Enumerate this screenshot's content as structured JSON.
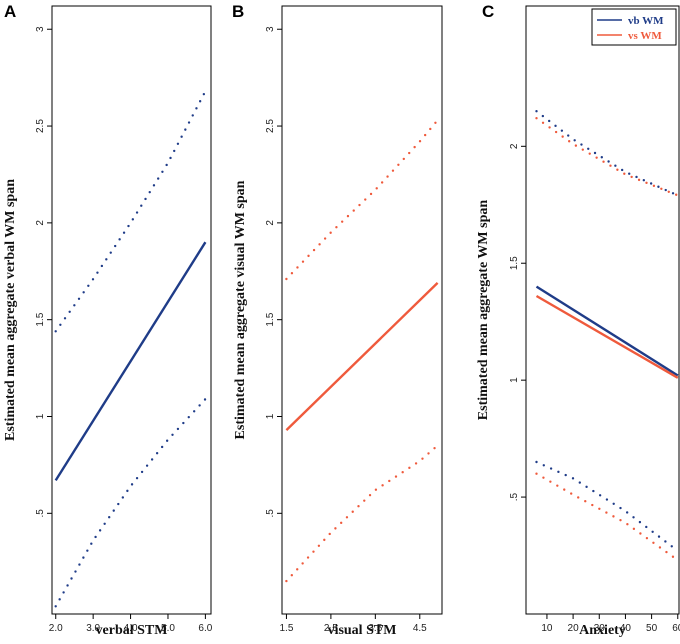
{
  "colors": {
    "verbal": "#1f3c88",
    "visual": "#ef5a3c",
    "axis": "#000000"
  },
  "chart_data": [
    {
      "panel": "A",
      "type": "line",
      "xlabel": "verbal STM",
      "ylabel": "Estimated mean aggregate verbal WM span",
      "xlim": [
        1.9,
        6.15
      ],
      "ylim": [
        -0.02,
        3.12
      ],
      "xticks": [
        2,
        3,
        4,
        5,
        6
      ],
      "xtick_labels": [
        "2.0",
        "3.0",
        "4.0",
        "5.0",
        "6.0"
      ],
      "yticks": [
        0.5,
        1,
        1.5,
        2,
        2.5,
        3
      ],
      "ytick_labels": [
        ".5",
        "1",
        "1.5",
        "2",
        "2.5",
        "3"
      ],
      "series": [
        {
          "name": "estimate",
          "color_key": "verbal",
          "style": "solid",
          "x": [
            2,
            6
          ],
          "y": [
            0.67,
            1.9
          ]
        },
        {
          "name": "upper CI",
          "color_key": "verbal",
          "style": "dotted",
          "x": [
            2,
            3,
            4,
            5,
            6
          ],
          "y": [
            1.44,
            1.71,
            2.0,
            2.31,
            2.68
          ]
        },
        {
          "name": "lower CI",
          "color_key": "verbal",
          "style": "dotted",
          "x": [
            2,
            3,
            4,
            5,
            6
          ],
          "y": [
            0.02,
            0.36,
            0.64,
            0.88,
            1.09
          ]
        }
      ]
    },
    {
      "panel": "B",
      "type": "line",
      "xlabel": "visual STM",
      "ylabel": "Estimated mean aggregate visual WM span",
      "xlim": [
        1.4,
        5.0
      ],
      "ylim": [
        -0.02,
        3.12
      ],
      "xticks": [
        1.5,
        2.5,
        3.5,
        4.5
      ],
      "xtick_labels": [
        "1.5",
        "2.5",
        "3.5",
        "4.5"
      ],
      "yticks": [
        0.5,
        1,
        1.5,
        2,
        2.5,
        3
      ],
      "ytick_labels": [
        ".5",
        "1",
        "1.5",
        "2",
        "2.5",
        "3"
      ],
      "series": [
        {
          "name": "estimate",
          "color_key": "visual",
          "style": "solid",
          "x": [
            1.5,
            4.9
          ],
          "y": [
            0.93,
            1.69
          ]
        },
        {
          "name": "upper CI",
          "color_key": "visual",
          "style": "dotted",
          "x": [
            1.5,
            2.5,
            3.5,
            4.5,
            4.9
          ],
          "y": [
            1.71,
            1.95,
            2.17,
            2.42,
            2.53
          ]
        },
        {
          "name": "lower CI",
          "color_key": "visual",
          "style": "dotted",
          "x": [
            1.5,
            2.5,
            3.5,
            4.5,
            4.9
          ],
          "y": [
            0.15,
            0.4,
            0.62,
            0.77,
            0.85
          ]
        }
      ]
    },
    {
      "panel": "C",
      "type": "line",
      "xlabel": "Anxiety",
      "ylabel": "Estimated mean aggregate WM span",
      "xlim": [
        2,
        62
      ],
      "ylim": [
        0.0,
        2.6
      ],
      "xticks": [
        10,
        20,
        30,
        40,
        50,
        60
      ],
      "xtick_labels": [
        "10",
        "20",
        "30",
        "40",
        "50",
        "60"
      ],
      "yticks": [
        0.5,
        1,
        1.5,
        2
      ],
      "ytick_labels": [
        ".5",
        "1",
        "1.5",
        "2"
      ],
      "legend": {
        "position": "top-right",
        "entries": [
          {
            "label": "vb WM",
            "color_key": "verbal"
          },
          {
            "label": "vs WM",
            "color_key": "visual"
          }
        ]
      },
      "series": [
        {
          "name": "vb WM estimate",
          "color_key": "verbal",
          "style": "solid",
          "x": [
            6,
            60
          ],
          "y": [
            1.4,
            1.02
          ]
        },
        {
          "name": "vs WM estimate",
          "color_key": "visual",
          "style": "solid",
          "x": [
            6,
            60
          ],
          "y": [
            1.36,
            1.01
          ]
        },
        {
          "name": "vb WM upper CI",
          "color_key": "verbal",
          "style": "dotted",
          "x": [
            6,
            20,
            40,
            60
          ],
          "y": [
            2.15,
            2.03,
            1.89,
            1.79
          ]
        },
        {
          "name": "vs WM upper CI",
          "color_key": "visual",
          "style": "dotted",
          "x": [
            6,
            20,
            40,
            60
          ],
          "y": [
            2.12,
            2.01,
            1.88,
            1.79
          ]
        },
        {
          "name": "vb WM lower CI",
          "color_key": "verbal",
          "style": "dotted",
          "x": [
            6,
            20,
            40,
            60
          ],
          "y": [
            0.65,
            0.58,
            0.44,
            0.27
          ]
        },
        {
          "name": "vs WM lower CI",
          "color_key": "visual",
          "style": "dotted",
          "x": [
            6,
            20,
            40,
            60
          ],
          "y": [
            0.6,
            0.51,
            0.39,
            0.23
          ]
        }
      ]
    }
  ]
}
